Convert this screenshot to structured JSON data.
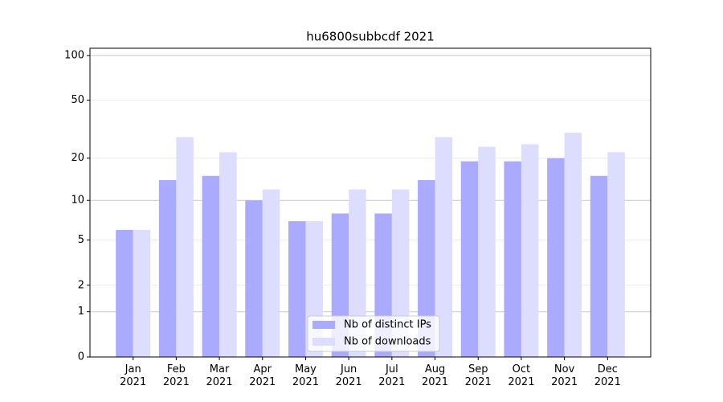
{
  "chart_data": {
    "type": "bar",
    "title": "hu6800subbcdf 2021",
    "categories": [
      "Jan\n2021",
      "Feb\n2021",
      "Mar\n2021",
      "Apr\n2021",
      "May\n2021",
      "Jun\n2021",
      "Jul\n2021",
      "Aug\n2021",
      "Sep\n2021",
      "Oct\n2021",
      "Nov\n2021",
      "Dec\n2021"
    ],
    "series": [
      {
        "name": "Nb of distinct IPs",
        "color": "#aaaaff",
        "values": [
          6,
          14,
          15,
          10,
          7,
          8,
          8,
          14,
          19,
          19,
          20,
          15
        ]
      },
      {
        "name": "Nb of downloads",
        "color": "#ddddff",
        "values": [
          6,
          28,
          22,
          12,
          7,
          12,
          12,
          28,
          24,
          25,
          30,
          22
        ]
      }
    ],
    "yscale": "log1p",
    "ylim": [
      0,
      112
    ],
    "yticks": [
      0,
      1,
      2,
      5,
      10,
      20,
      50,
      100
    ],
    "grid": true,
    "legend": "lower center"
  }
}
